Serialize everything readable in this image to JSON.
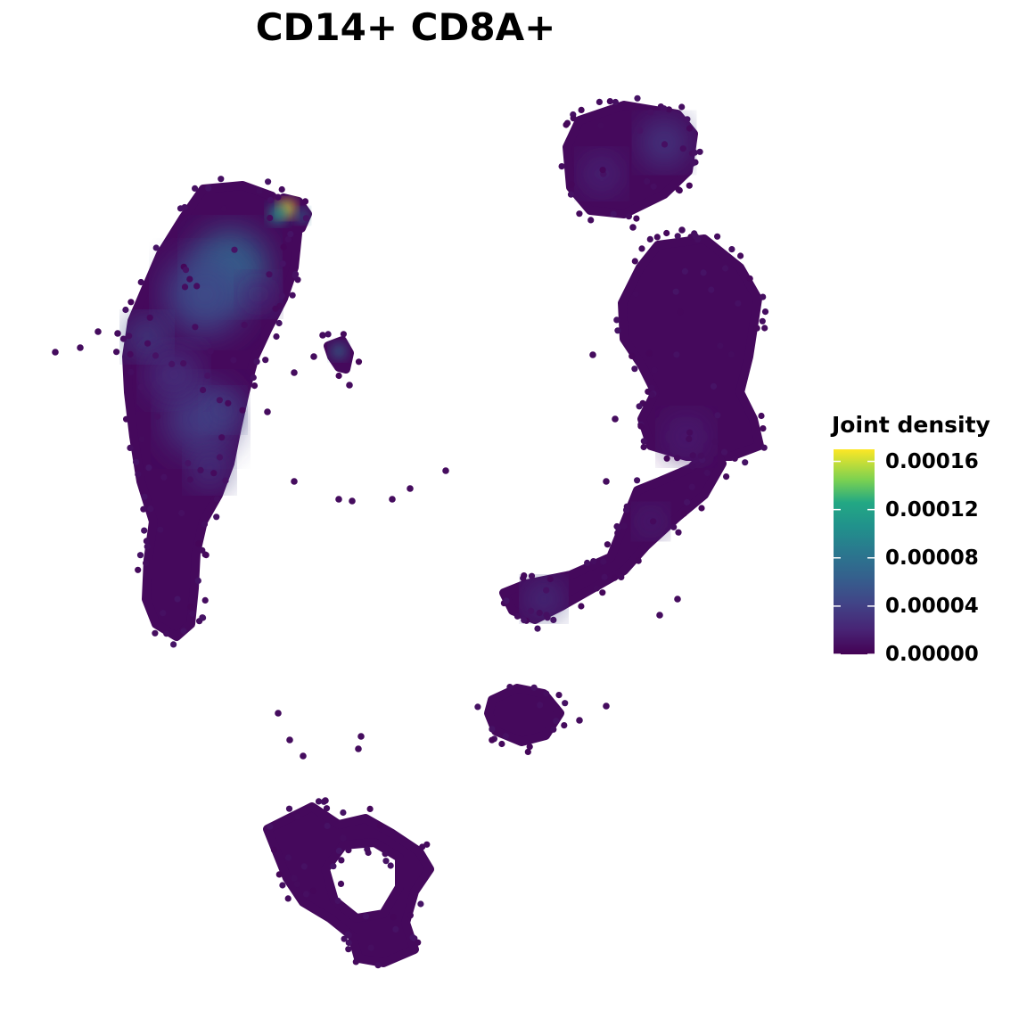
{
  "chart_data": {
    "type": "scatter",
    "title": "CD14+ CD8A+",
    "xlabel": "",
    "ylabel": "",
    "axes_visible": false,
    "grid": false,
    "legend": {
      "title": "Joint density",
      "placement": "right",
      "colormap": "viridis",
      "range": [
        0,
        0.00017
      ],
      "ticks": [
        0,
        4e-05,
        8e-05,
        0.00012,
        0.00016
      ],
      "tick_labels": [
        "0.00000",
        "0.00004",
        "0.00008",
        "0.00012",
        "0.00016"
      ]
    },
    "point_color_low": "#440154",
    "point_color_high": "#fde725",
    "clusters": [
      {
        "region": "left-large",
        "density_range": [
          0.0,
          7e-05
        ]
      },
      {
        "region": "left-top-hotspot",
        "density_range": [
          8e-05,
          0.00017
        ]
      },
      {
        "region": "left-small-fragment",
        "density_range": [
          3e-05,
          8e-05
        ]
      },
      {
        "region": "top-right",
        "density_range": [
          0.0,
          4e-05
        ]
      },
      {
        "region": "right-large",
        "density_range": [
          0.0,
          2e-05
        ]
      },
      {
        "region": "center-arm",
        "density_range": [
          0.0,
          4e-05
        ]
      },
      {
        "region": "bottom-right-blob",
        "density_range": [
          0.0,
          1e-05
        ]
      },
      {
        "region": "bottom-ring",
        "density_range": [
          0.0,
          1e-05
        ]
      }
    ]
  }
}
